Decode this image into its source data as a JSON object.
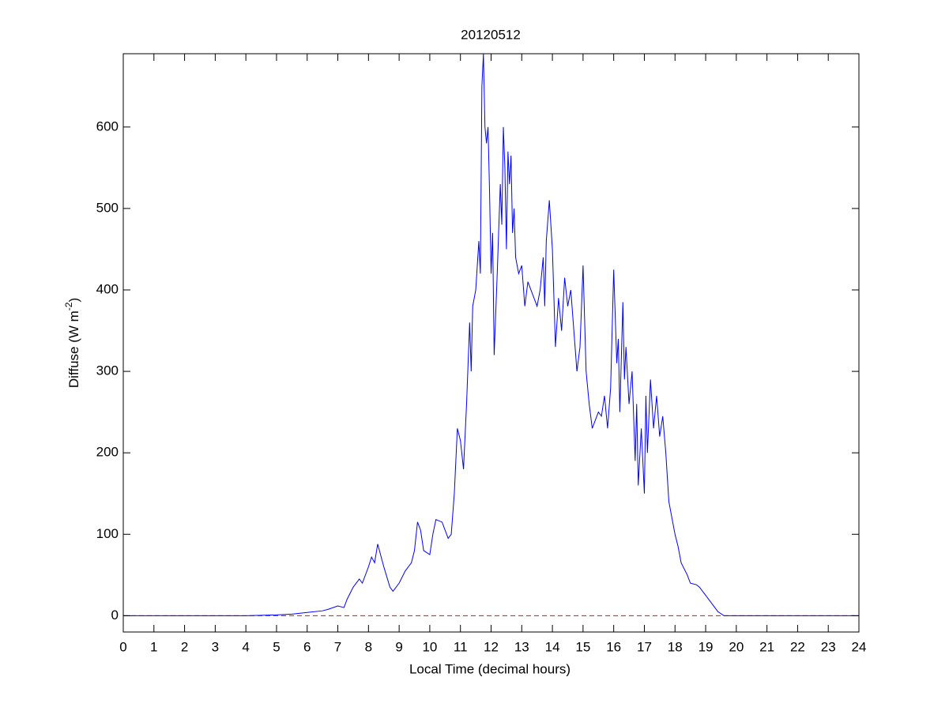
{
  "chart_data": {
    "type": "line",
    "title": "20120512",
    "xlabel": "Local Time (decimal hours)",
    "ylabel": [
      "Diffuse (W m",
      "-2",
      ")"
    ],
    "xlim": [
      0,
      24
    ],
    "ylim": [
      -20,
      690
    ],
    "xticks": [
      0,
      1,
      2,
      3,
      4,
      5,
      6,
      7,
      8,
      9,
      10,
      11,
      12,
      13,
      14,
      15,
      16,
      17,
      18,
      19,
      20,
      21,
      22,
      23,
      24
    ],
    "yticks": [
      0,
      100,
      200,
      300,
      400,
      500,
      600
    ],
    "reference_line": {
      "value": 0,
      "color": "#ff0000",
      "dashed": true
    },
    "series": [
      {
        "name": "Diffuse",
        "color": "#0000ff",
        "x": [
          0,
          1,
          2,
          3,
          4,
          5,
          5.5,
          6,
          6.5,
          6.7,
          7,
          7.2,
          7.3,
          7.5,
          7.7,
          7.8,
          8,
          8.1,
          8.2,
          8.3,
          8.5,
          8.7,
          8.8,
          9,
          9.2,
          9.4,
          9.5,
          9.6,
          9.7,
          9.8,
          10,
          10.1,
          10.2,
          10.4,
          10.6,
          10.7,
          10.8,
          10.9,
          11,
          11.1,
          11.2,
          11.3,
          11.35,
          11.4,
          11.5,
          11.55,
          11.6,
          11.65,
          11.7,
          11.75,
          11.8,
          11.85,
          11.9,
          11.95,
          12,
          12.05,
          12.1,
          12.2,
          12.3,
          12.35,
          12.4,
          12.45,
          12.5,
          12.55,
          12.6,
          12.65,
          12.7,
          12.75,
          12.8,
          12.9,
          13,
          13.1,
          13.2,
          13.4,
          13.5,
          13.6,
          13.7,
          13.75,
          13.8,
          13.9,
          14,
          14.1,
          14.2,
          14.3,
          14.4,
          14.5,
          14.6,
          14.7,
          14.8,
          14.9,
          15,
          15.1,
          15.2,
          15.3,
          15.4,
          15.5,
          15.6,
          15.7,
          15.8,
          15.9,
          16,
          16.1,
          16.15,
          16.2,
          16.3,
          16.35,
          16.4,
          16.5,
          16.6,
          16.7,
          16.75,
          16.8,
          16.9,
          17,
          17.05,
          17.1,
          17.2,
          17.3,
          17.4,
          17.5,
          17.6,
          17.7,
          17.8,
          17.9,
          18,
          18.1,
          18.2,
          18.4,
          18.5,
          18.7,
          18.8,
          19,
          19.2,
          19.4,
          19.6,
          20,
          22,
          24
        ],
        "values": [
          0,
          0,
          0,
          0,
          0,
          1,
          2,
          4,
          6,
          8,
          12,
          10,
          20,
          35,
          45,
          40,
          60,
          72,
          65,
          88,
          60,
          35,
          30,
          40,
          55,
          65,
          80,
          115,
          105,
          80,
          75,
          100,
          118,
          115,
          95,
          100,
          150,
          230,
          215,
          180,
          260,
          360,
          300,
          380,
          400,
          430,
          460,
          420,
          650,
          690,
          600,
          580,
          600,
          520,
          420,
          470,
          320,
          420,
          530,
          480,
          600,
          550,
          450,
          570,
          530,
          565,
          470,
          500,
          440,
          420,
          430,
          380,
          410,
          390,
          380,
          400,
          440,
          380,
          460,
          510,
          450,
          330,
          390,
          350,
          415,
          380,
          400,
          350,
          300,
          330,
          430,
          300,
          260,
          230,
          240,
          250,
          245,
          270,
          230,
          280,
          425,
          310,
          340,
          250,
          385,
          290,
          330,
          260,
          300,
          190,
          260,
          160,
          230,
          150,
          270,
          200,
          290,
          230,
          270,
          220,
          245,
          200,
          140,
          120,
          100,
          85,
          65,
          50,
          40,
          38,
          35,
          25,
          15,
          5,
          0,
          0,
          0,
          0
        ]
      }
    ]
  }
}
